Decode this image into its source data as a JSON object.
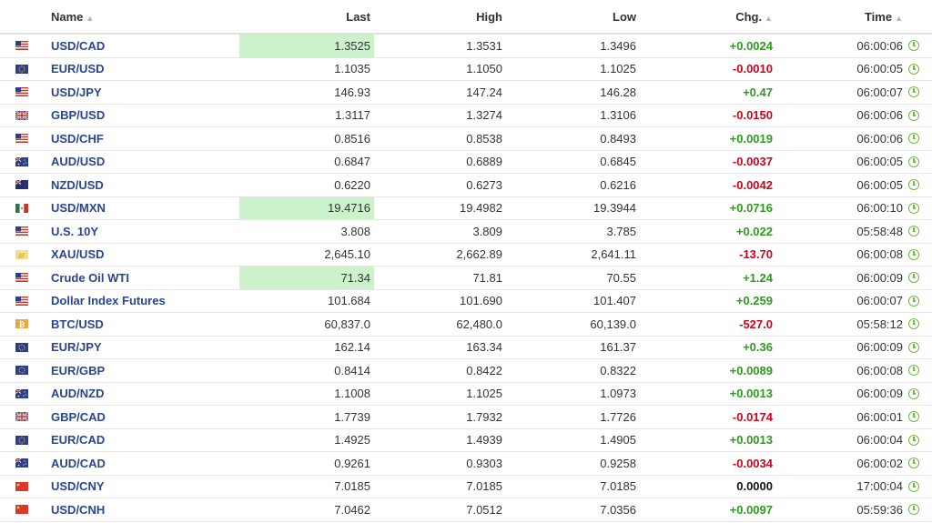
{
  "columns": {
    "name": "Name",
    "last": "Last",
    "high": "High",
    "low": "Low",
    "chg": "Chg.",
    "time": "Time"
  },
  "rows": [
    {
      "flag": "us-flag",
      "name": "USD/CAD",
      "last": "1.3525",
      "high": "1.3531",
      "low": "1.3496",
      "chg": "+0.0024",
      "dir": "up",
      "time": "06:00:06",
      "highlight": true
    },
    {
      "flag": "eu-flag",
      "name": "EUR/USD",
      "last": "1.1035",
      "high": "1.1050",
      "low": "1.1025",
      "chg": "-0.0010",
      "dir": "down",
      "time": "06:00:05",
      "highlight": false
    },
    {
      "flag": "us-flag",
      "name": "USD/JPY",
      "last": "146.93",
      "high": "147.24",
      "low": "146.28",
      "chg": "+0.47",
      "dir": "up",
      "time": "06:00:07",
      "highlight": false
    },
    {
      "flag": "uk-flag",
      "name": "GBP/USD",
      "last": "1.3117",
      "high": "1.3274",
      "low": "1.3106",
      "chg": "-0.0150",
      "dir": "down",
      "time": "06:00:06",
      "highlight": false
    },
    {
      "flag": "us-flag",
      "name": "USD/CHF",
      "last": "0.8516",
      "high": "0.8538",
      "low": "0.8493",
      "chg": "+0.0019",
      "dir": "up",
      "time": "06:00:06",
      "highlight": false
    },
    {
      "flag": "au-flag",
      "name": "AUD/USD",
      "last": "0.6847",
      "high": "0.6889",
      "low": "0.6845",
      "chg": "-0.0037",
      "dir": "down",
      "time": "06:00:05",
      "highlight": false
    },
    {
      "flag": "nz-flag",
      "name": "NZD/USD",
      "last": "0.6220",
      "high": "0.6273",
      "low": "0.6216",
      "chg": "-0.0042",
      "dir": "down",
      "time": "06:00:05",
      "highlight": false
    },
    {
      "flag": "mx-flag",
      "name": "USD/MXN",
      "last": "19.4716",
      "high": "19.4982",
      "low": "19.3944",
      "chg": "+0.0716",
      "dir": "up",
      "time": "06:00:10",
      "highlight": true
    },
    {
      "flag": "us-flag",
      "name": "U.S. 10Y",
      "last": "3.808",
      "high": "3.809",
      "low": "3.785",
      "chg": "+0.022",
      "dir": "up",
      "time": "05:58:48",
      "highlight": false
    },
    {
      "flag": "gold-flag",
      "name": "XAU/USD",
      "last": "2,645.10",
      "high": "2,662.89",
      "low": "2,641.11",
      "chg": "-13.70",
      "dir": "down",
      "time": "06:00:08",
      "highlight": false
    },
    {
      "flag": "us-flag",
      "name": "Crude Oil WTI",
      "last": "71.34",
      "high": "71.81",
      "low": "70.55",
      "chg": "+1.24",
      "dir": "up",
      "time": "06:00:09",
      "highlight": true
    },
    {
      "flag": "us-flag",
      "name": "Dollar Index Futures",
      "last": "101.684",
      "high": "101.690",
      "low": "101.407",
      "chg": "+0.259",
      "dir": "up",
      "time": "06:00:07",
      "highlight": false
    },
    {
      "flag": "btc-flag",
      "name": "BTC/USD",
      "last": "60,837.0",
      "high": "62,480.0",
      "low": "60,139.0",
      "chg": "-527.0",
      "dir": "down",
      "time": "05:58:12",
      "highlight": false
    },
    {
      "flag": "eu-flag",
      "name": "EUR/JPY",
      "last": "162.14",
      "high": "163.34",
      "low": "161.37",
      "chg": "+0.36",
      "dir": "up",
      "time": "06:00:09",
      "highlight": false
    },
    {
      "flag": "eu-flag",
      "name": "EUR/GBP",
      "last": "0.8414",
      "high": "0.8422",
      "low": "0.8322",
      "chg": "+0.0089",
      "dir": "up",
      "time": "06:00:08",
      "highlight": false
    },
    {
      "flag": "au-flag",
      "name": "AUD/NZD",
      "last": "1.1008",
      "high": "1.1025",
      "low": "1.0973",
      "chg": "+0.0013",
      "dir": "up",
      "time": "06:00:09",
      "highlight": false
    },
    {
      "flag": "uk-flag",
      "name": "GBP/CAD",
      "last": "1.7739",
      "high": "1.7932",
      "low": "1.7726",
      "chg": "-0.0174",
      "dir": "down",
      "time": "06:00:01",
      "highlight": false
    },
    {
      "flag": "eu-flag",
      "name": "EUR/CAD",
      "last": "1.4925",
      "high": "1.4939",
      "low": "1.4905",
      "chg": "+0.0013",
      "dir": "up",
      "time": "06:00:04",
      "highlight": false
    },
    {
      "flag": "au-flag",
      "name": "AUD/CAD",
      "last": "0.9261",
      "high": "0.9303",
      "low": "0.9258",
      "chg": "-0.0034",
      "dir": "down",
      "time": "06:00:02",
      "highlight": false
    },
    {
      "flag": "us-flag",
      "name": "USD/CNY",
      "last": "7.0185",
      "high": "7.0185",
      "low": "7.0185",
      "chg": "0.0000",
      "dir": "flat",
      "time": "17:00:04",
      "highlight": false
    },
    {
      "flag": "us-flag",
      "name": "USD/CNH",
      "last": "7.0462",
      "high": "7.0512",
      "low": "7.0356",
      "chg": "+0.0097",
      "dir": "up",
      "time": "05:59:36",
      "highlight": false
    }
  ],
  "colors": {
    "up": "#2e9a1f",
    "down": "#d0021b",
    "link": "#2a4593",
    "highlight": "#ccf2cc",
    "clock": "#6bbf3a"
  }
}
